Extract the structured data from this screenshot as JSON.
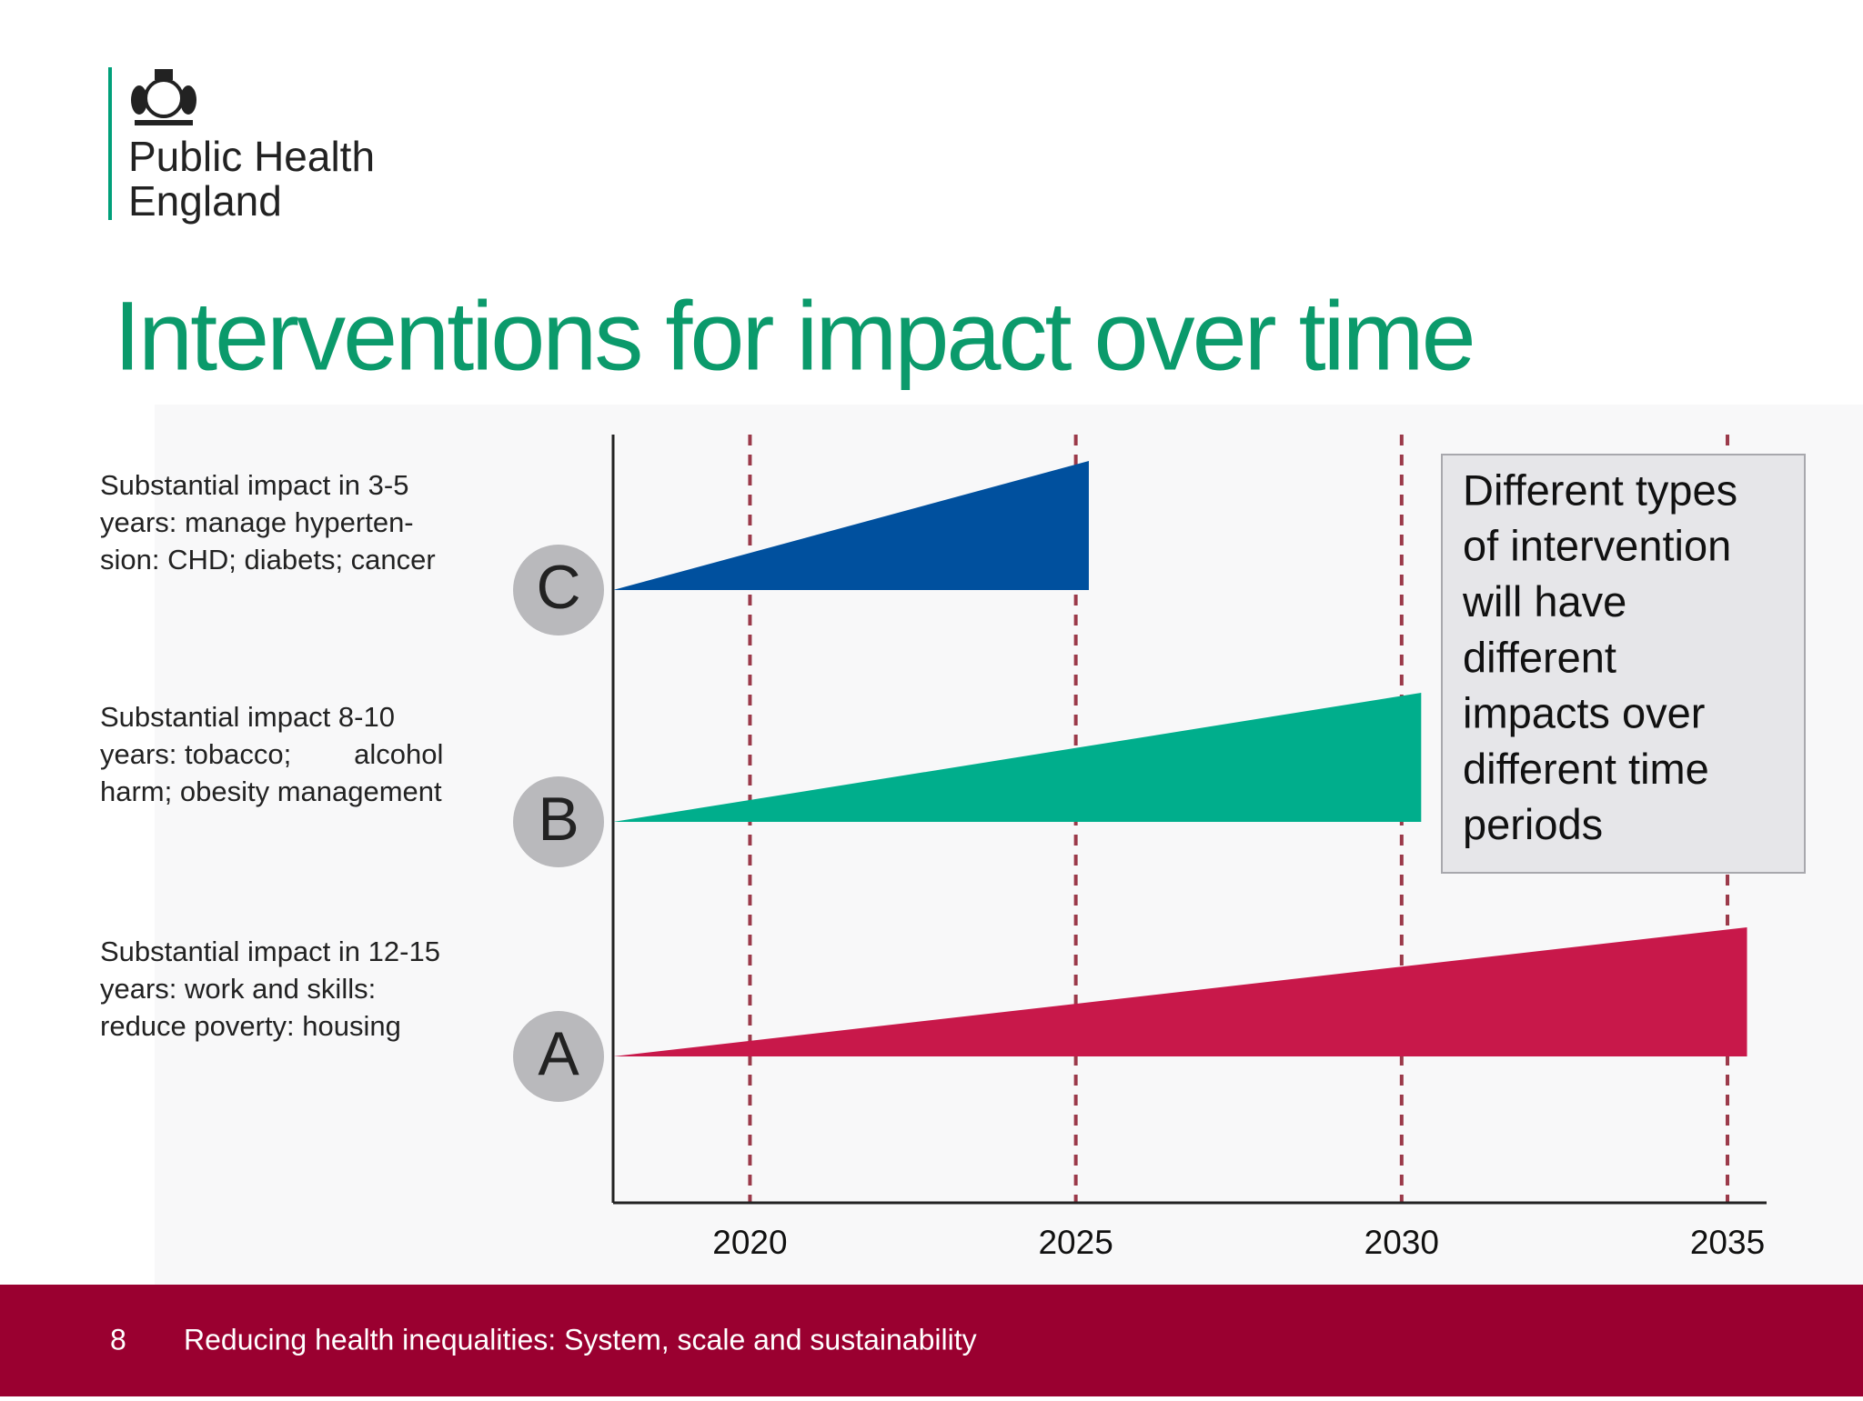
{
  "header": {
    "org": [
      "Public Health",
      "England"
    ],
    "title": "Interventions for impact over time"
  },
  "chart_data": {
    "type": "wedge",
    "categories": [
      "C",
      "B",
      "A"
    ],
    "descriptions": [
      [
        "Substantial impact in 3-5",
        "years: manage hyperten-",
        "sion: CHD; diabets; cancer"
      ],
      [
        "Substantial impact 8-10",
        "years: tobacco;        alcohol",
        "harm; obesity management"
      ],
      [
        "Substantial impact in 12-15",
        "years: work and skills:",
        "reduce poverty: housing"
      ]
    ],
    "values": [
      2025.2,
      2030.3,
      2035.3
    ],
    "colors": [
      "#00509e",
      "#00ae8c",
      "#c8184a"
    ],
    "xlim": [
      2017.9,
      2035.6
    ],
    "xticks": [
      2020,
      2025,
      2030,
      2035
    ],
    "grid": true,
    "note": [
      "Different types",
      "of intervention",
      "will have",
      "different",
      "impacts over",
      "different time",
      "periods"
    ]
  },
  "footer": {
    "page": "8",
    "text": "Reducing health inequalities: System, scale and sustainability"
  }
}
